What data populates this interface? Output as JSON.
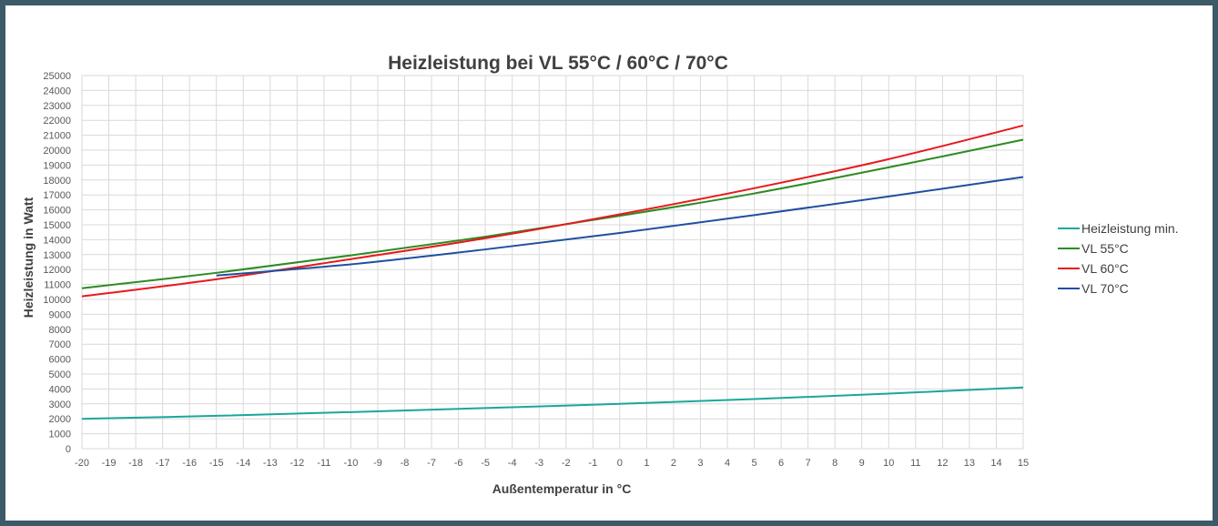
{
  "chart_data": {
    "type": "line",
    "title": "Heizleistung bei VL 55°C / 60°C / 70°C",
    "xlabel": "Außentemperatur in °C",
    "ylabel": "Heizleistung in Watt",
    "xlim": [
      -20,
      15
    ],
    "ylim": [
      0,
      25000
    ],
    "y_tick_step": 1000,
    "x_tick_step": 1,
    "grid": true,
    "legend_position": "right",
    "series": [
      {
        "name": "Heizleistung min.",
        "color": "#1aa79a",
        "x": [
          -20,
          -15,
          -10,
          -5,
          0,
          5,
          10,
          15
        ],
        "y": [
          2000,
          2200,
          2450,
          2720,
          3000,
          3320,
          3690,
          4100
        ]
      },
      {
        "name": "VL 55°C",
        "color": "#2e8b22",
        "x": [
          -20,
          -15,
          -10,
          -5,
          0,
          5,
          10,
          15
        ],
        "y": [
          10750,
          11780,
          12950,
          14200,
          15600,
          17100,
          18850,
          20700
        ]
      },
      {
        "name": "VL 60°C",
        "color": "#e8191c",
        "x": [
          -20,
          -15,
          -10,
          -5,
          0,
          5,
          10,
          15
        ],
        "y": [
          10200,
          11350,
          12700,
          14100,
          15700,
          17450,
          19400,
          21650
        ]
      },
      {
        "name": "VL 70°C",
        "color": "#1f4fa0",
        "x": [
          -15,
          -10,
          -5,
          0,
          5,
          10,
          15
        ],
        "y": [
          11600,
          12350,
          13350,
          14450,
          15650,
          16900,
          18200
        ]
      }
    ]
  }
}
